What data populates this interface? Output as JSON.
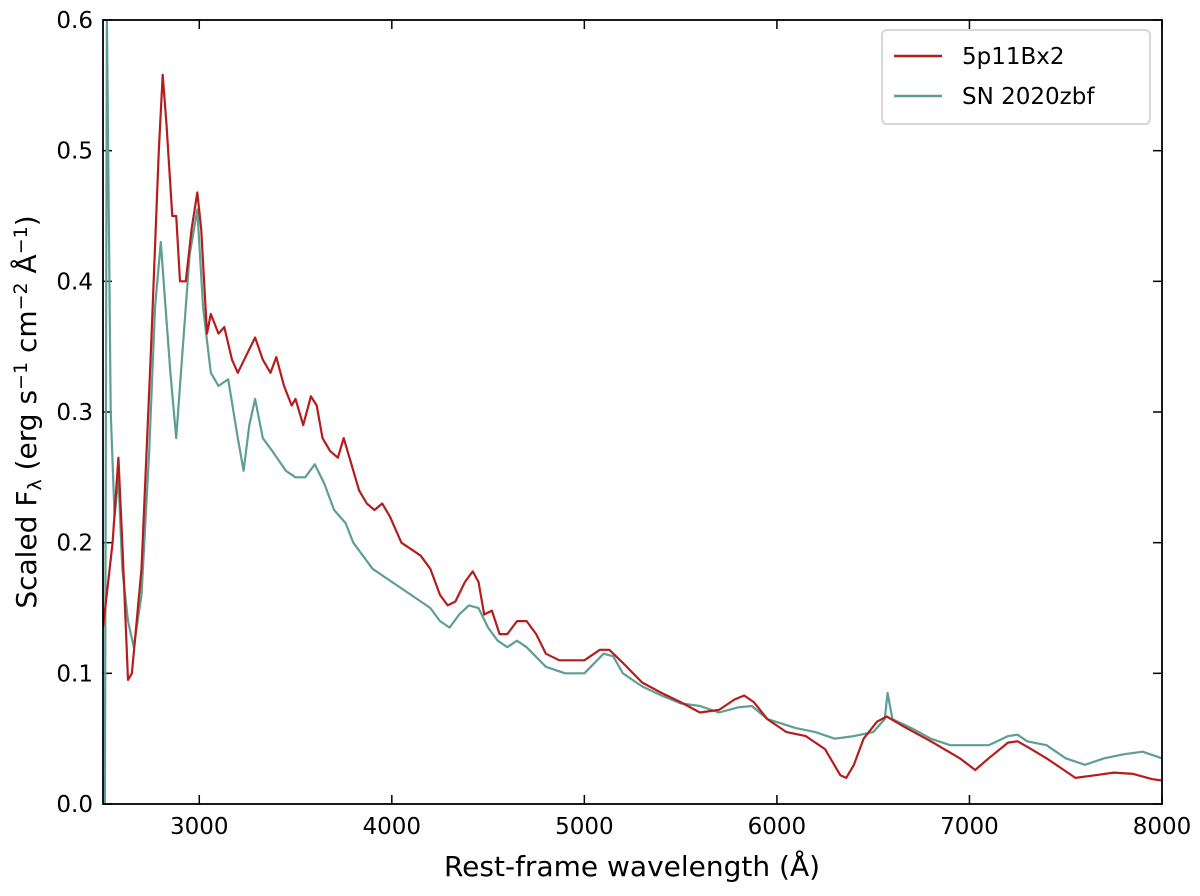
{
  "chart_data": {
    "type": "line",
    "xlabel": "Rest-frame wavelength (Å)",
    "ylabel": [
      {
        "text": "Scaled F"
      },
      {
        "text": "λ",
        "shift": "sub"
      },
      {
        "text": " (erg s"
      },
      {
        "text": "−1",
        "shift": "super"
      },
      {
        "text": " cm"
      },
      {
        "text": "−2",
        "shift": "super"
      },
      {
        "text": " Å"
      },
      {
        "text": "−1",
        "shift": "super"
      },
      {
        "text": ")"
      }
    ],
    "xlim": [
      2500,
      8000
    ],
    "ylim": [
      0,
      0.6
    ],
    "xticks": [
      3000,
      4000,
      5000,
      6000,
      7000,
      8000
    ],
    "yticks": [
      {
        "value": 0,
        "label": "0.0"
      },
      0.1,
      0.2,
      0.3,
      0.4,
      0.5,
      0.6
    ],
    "legend": "upper right",
    "series": [
      {
        "name": "5p11Bx2",
        "color": "#b51d1d",
        "x": [
          2500,
          2550,
          2580,
          2600,
          2630,
          2650,
          2700,
          2750,
          2790,
          2810,
          2830,
          2860,
          2880,
          2900,
          2930,
          2960,
          2990,
          3010,
          3040,
          3060,
          3100,
          3130,
          3170,
          3200,
          3250,
          3290,
          3330,
          3370,
          3400,
          3440,
          3480,
          3500,
          3540,
          3580,
          3610,
          3640,
          3680,
          3720,
          3750,
          3780,
          3830,
          3870,
          3910,
          3950,
          3990,
          4050,
          4100,
          4150,
          4200,
          4250,
          4290,
          4330,
          4380,
          4420,
          4450,
          4480,
          4520,
          4560,
          4600,
          4650,
          4700,
          4750,
          4800,
          4870,
          4950,
          5000,
          5080,
          5130,
          5200,
          5300,
          5400,
          5500,
          5600,
          5700,
          5780,
          5830,
          5880,
          5950,
          6050,
          6150,
          6250,
          6330,
          6360,
          6400,
          6450,
          6520,
          6570,
          6650,
          6800,
          6950,
          7030,
          7100,
          7200,
          7250,
          7320,
          7400,
          7470,
          7550,
          7650,
          7750,
          7850,
          7950,
          8000
        ],
        "values": [
          0.135,
          0.2,
          0.265,
          0.2,
          0.095,
          0.1,
          0.18,
          0.35,
          0.5,
          0.558,
          0.52,
          0.45,
          0.45,
          0.4,
          0.4,
          0.44,
          0.468,
          0.44,
          0.36,
          0.375,
          0.36,
          0.365,
          0.34,
          0.33,
          0.345,
          0.357,
          0.34,
          0.33,
          0.342,
          0.32,
          0.305,
          0.31,
          0.29,
          0.312,
          0.305,
          0.28,
          0.27,
          0.265,
          0.28,
          0.265,
          0.24,
          0.23,
          0.225,
          0.23,
          0.22,
          0.2,
          0.195,
          0.19,
          0.18,
          0.16,
          0.152,
          0.155,
          0.17,
          0.178,
          0.17,
          0.145,
          0.148,
          0.13,
          0.13,
          0.14,
          0.14,
          0.13,
          0.115,
          0.11,
          0.11,
          0.11,
          0.118,
          0.118,
          0.108,
          0.093,
          0.085,
          0.078,
          0.07,
          0.072,
          0.08,
          0.083,
          0.078,
          0.065,
          0.055,
          0.052,
          0.042,
          0.022,
          0.02,
          0.03,
          0.05,
          0.063,
          0.067,
          0.06,
          0.048,
          0.035,
          0.026,
          0.035,
          0.047,
          0.048,
          0.042,
          0.035,
          0.028,
          0.02,
          0.022,
          0.024,
          0.023,
          0.019,
          0.018
        ]
      },
      {
        "name": "SN 2020zbf",
        "color": "#5f9e94",
        "x": [
          2510,
          2520,
          2540,
          2560,
          2580,
          2600,
          2630,
          2660,
          2700,
          2740,
          2770,
          2800,
          2820,
          2850,
          2880,
          2910,
          2950,
          2990,
          3020,
          3060,
          3100,
          3150,
          3200,
          3230,
          3260,
          3290,
          3330,
          3380,
          3450,
          3500,
          3550,
          3600,
          3650,
          3700,
          3760,
          3800,
          3850,
          3900,
          4000,
          4100,
          4200,
          4250,
          4300,
          4350,
          4400,
          4450,
          4500,
          4550,
          4600,
          4650,
          4700,
          4800,
          4900,
          5000,
          5100,
          5150,
          5200,
          5300,
          5400,
          5500,
          5600,
          5700,
          5800,
          5870,
          5950,
          6100,
          6200,
          6300,
          6400,
          6500,
          6560,
          6575,
          6600,
          6700,
          6800,
          6900,
          7000,
          7100,
          7200,
          7250,
          7300,
          7400,
          7500,
          7600,
          7700,
          7800,
          7900,
          8000
        ],
        "values": [
          0.0,
          0.6,
          0.3,
          0.22,
          0.25,
          0.18,
          0.14,
          0.12,
          0.16,
          0.27,
          0.38,
          0.43,
          0.39,
          0.33,
          0.28,
          0.34,
          0.42,
          0.455,
          0.38,
          0.33,
          0.32,
          0.325,
          0.28,
          0.255,
          0.29,
          0.31,
          0.28,
          0.27,
          0.255,
          0.25,
          0.25,
          0.26,
          0.245,
          0.225,
          0.215,
          0.2,
          0.19,
          0.18,
          0.17,
          0.16,
          0.15,
          0.14,
          0.135,
          0.145,
          0.152,
          0.15,
          0.135,
          0.125,
          0.12,
          0.125,
          0.12,
          0.105,
          0.1,
          0.1,
          0.115,
          0.113,
          0.1,
          0.09,
          0.083,
          0.077,
          0.075,
          0.07,
          0.074,
          0.075,
          0.065,
          0.058,
          0.055,
          0.05,
          0.052,
          0.055,
          0.065,
          0.085,
          0.065,
          0.058,
          0.05,
          0.045,
          0.045,
          0.045,
          0.052,
          0.053,
          0.048,
          0.045,
          0.035,
          0.03,
          0.035,
          0.038,
          0.04,
          0.035
        ]
      }
    ]
  }
}
